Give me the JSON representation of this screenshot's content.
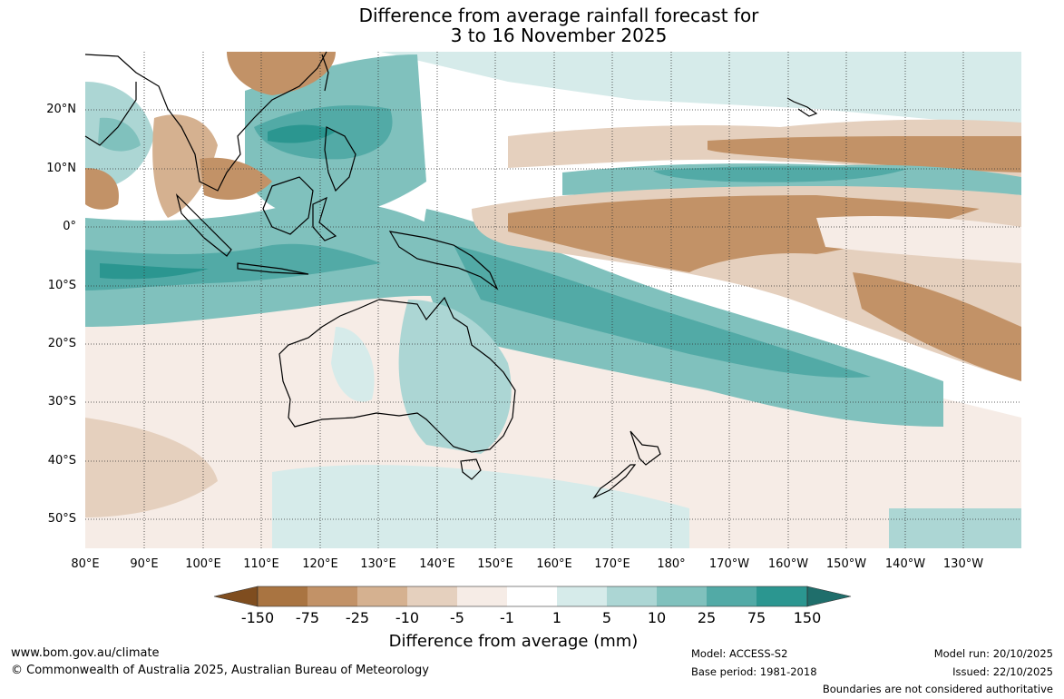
{
  "title": {
    "line1": "Difference from average rainfall forecast for",
    "line2": "3 to 16 November 2025"
  },
  "map": {
    "lat_labels": [
      "20°N",
      "10°N",
      "0°",
      "10°S",
      "20°S",
      "30°S",
      "40°S",
      "50°S"
    ],
    "lon_labels": [
      "80°E",
      "90°E",
      "100°E",
      "110°E",
      "120°E",
      "130°E",
      "140°E",
      "150°E",
      "160°E",
      "170°E",
      "180°",
      "170°W",
      "160°W",
      "150°W",
      "140°W",
      "130°W"
    ]
  },
  "colorbar": {
    "title": "Difference from average (mm)",
    "ticks": [
      "-150",
      "-75",
      "-25",
      "-10",
      "-5",
      "-1",
      "1",
      "5",
      "10",
      "25",
      "75",
      "150"
    ],
    "colors": [
      "#7f4d1f",
      "#a97441",
      "#c29267",
      "#d5b190",
      "#e5d0be",
      "#f6ece6",
      "#ffffff",
      "#d6ebea",
      "#acd6d4",
      "#80c1bd",
      "#52aaa6",
      "#2b9690",
      "#1f6e6b"
    ]
  },
  "footer": {
    "website": "www.bom.gov.au/climate",
    "copyright": "© Commonwealth of Australia 2025, Australian Bureau of Meteorology",
    "model": "Model: ACCESS-S2",
    "base_period": "Base period: 1981-2018",
    "model_run": "Model run: 20/10/2025",
    "issued": "Issued: 22/10/2025",
    "disclaimer": "Boundaries are not considered authoritative"
  }
}
